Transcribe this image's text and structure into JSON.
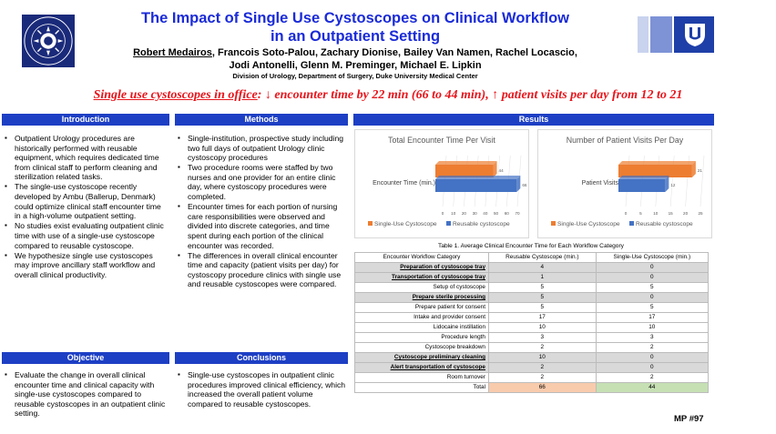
{
  "header": {
    "title_line1": "The Impact of Single Use Cystoscopes on Clinical Workflow",
    "title_line2": "in an Outpatient Setting",
    "presenter": "Robert Medairos",
    "authors_rest_line1": ", Francois Soto-Palou, Zachary Dionise, Bailey Van Namen, Rachel Locascio,",
    "authors_line2": "Jodi Antonelli, Glenn M. Preminger, Michael E. Lipkin",
    "affiliation": "Division of Urology, Department of Surgery, Duke University Medical Center",
    "logo_top_text": "The Duke Comprehensive",
    "logo_bottom_text": "Kidney Stone Center",
    "colors": {
      "title": "#1a2bd8",
      "section_bar": "#1d3fc4",
      "headline": "#e8141b"
    }
  },
  "headline": {
    "label": "Single use cystoscopes in office",
    "text": ": ↓ encounter time by 22 min (66 to 44 min), ↑ patient visits per day from 12 to 21"
  },
  "introduction": {
    "heading": "Introduction",
    "bullets": [
      "Outpatient Urology procedures are historically performed with reusable equipment, which requires dedicated time from clinical staff to perform cleaning and sterilization related tasks.",
      "The single-use cystoscope recently developed by Ambu (Ballerup, Denmark) could optimize clinical staff encounter time in a high-volume outpatient setting.",
      "No studies exist evaluating outpatient clinic time with use of a single-use cystoscope compared to reusable cystoscope.",
      "We hypothesize single use cystoscopes may improve ancillary staff workflow and overall clinical productivity."
    ]
  },
  "objective": {
    "heading": "Objective",
    "bullets": [
      "Evaluate the change in overall clinical encounter time and clinical capacity with single-use cystoscopes compared to reusable cystoscopes  in an outpatient clinic setting."
    ]
  },
  "methods": {
    "heading": "Methods",
    "bullets": [
      "Single-institution, prospective study including two full days of outpatient Urology clinic cystoscopy procedures",
      "Two procedure rooms were staffed by two nurses and one provider for an entire clinic day, where cystoscopy procedures were completed.",
      "Encounter times for each portion of nursing care responsibilities were observed and divided into discrete categories, and time spent during each portion of the clinical encounter was recorded.",
      "The differences in overall clinical encounter time and capacity (patient visits per day) for cystoscopy procedure clinics with single use and reusable cystoscopes were compared."
    ]
  },
  "conclusions": {
    "heading": "Conclusions",
    "bullets": [
      "Single-use cystoscopes in outpatient clinic procedures improved clinical efficiency, which increased the overall patient volume compared to reusable cystoscopes."
    ]
  },
  "results": {
    "heading": "Results"
  },
  "chart_data": [
    {
      "type": "bar",
      "orientation": "horizontal",
      "title": "Total Encounter Time Per Visit",
      "categories": [
        "Encounter Time (min.)"
      ],
      "series": [
        {
          "name": "Single-Use Cystoscope",
          "values": [
            44
          ],
          "color": "#ed7d31"
        },
        {
          "name": "Reusable cystoscope",
          "values": [
            66
          ],
          "color": "#4472c4"
        }
      ],
      "xticks": [
        "0",
        "10",
        "20",
        "30",
        "40",
        "50",
        "60",
        "70"
      ],
      "xlim": [
        0,
        70
      ],
      "legend": "bottom",
      "grid": true
    },
    {
      "type": "bar",
      "orientation": "horizontal",
      "title": "Number of Patient Visits Per Day",
      "categories": [
        "Patient Visits"
      ],
      "series": [
        {
          "name": "Single-Use Cystoscope",
          "values": [
            21
          ],
          "color": "#ed7d31"
        },
        {
          "name": "Reusable cystoscope",
          "values": [
            12
          ],
          "color": "#4472c4"
        }
      ],
      "xticks": [
        "0",
        "5",
        "10",
        "15",
        "20",
        "25"
      ],
      "xlim": [
        0,
        25
      ],
      "legend": "bottom",
      "grid": true
    }
  ],
  "table": {
    "caption": "Table 1. Average Clinical Encounter Time for Each Workflow Category",
    "headers": [
      "Encounter Workflow Category",
      "Reusable Cystoscope (min.)",
      "Single-Use Cystoscope (min.)"
    ],
    "rows": [
      {
        "cat": "Preparation of cystoscope tray",
        "r": "4",
        "s": "0",
        "bold": true
      },
      {
        "cat": "Transportation of cystoscope tray",
        "r": "1",
        "s": "0",
        "bold": true
      },
      {
        "cat": "Setup of cystoscope",
        "r": "5",
        "s": "5",
        "bold": false
      },
      {
        "cat": "Prepare sterile processing",
        "r": "5",
        "s": "0",
        "bold": true
      },
      {
        "cat": "Prepare patient for consent",
        "r": "5",
        "s": "5",
        "bold": false
      },
      {
        "cat": "Intake and provider consent",
        "r": "17",
        "s": "17",
        "bold": false
      },
      {
        "cat": "Lidocaine instillation",
        "r": "10",
        "s": "10",
        "bold": false
      },
      {
        "cat": "Procedure length",
        "r": "3",
        "s": "3",
        "bold": false
      },
      {
        "cat": "Cystoscope breakdown",
        "r": "2",
        "s": "2",
        "bold": false
      },
      {
        "cat": "Cystoscope preliminary cleaning",
        "r": "10",
        "s": "0",
        "bold": true
      },
      {
        "cat": "Alert transportation of cystoscope",
        "r": "2",
        "s": "0",
        "bold": true
      },
      {
        "cat": "Room turnover",
        "r": "2",
        "s": "2",
        "bold": false
      }
    ],
    "total": {
      "cat": "Total",
      "r": "66",
      "s": "44"
    }
  },
  "footer": {
    "poster_id": "MP #97"
  }
}
